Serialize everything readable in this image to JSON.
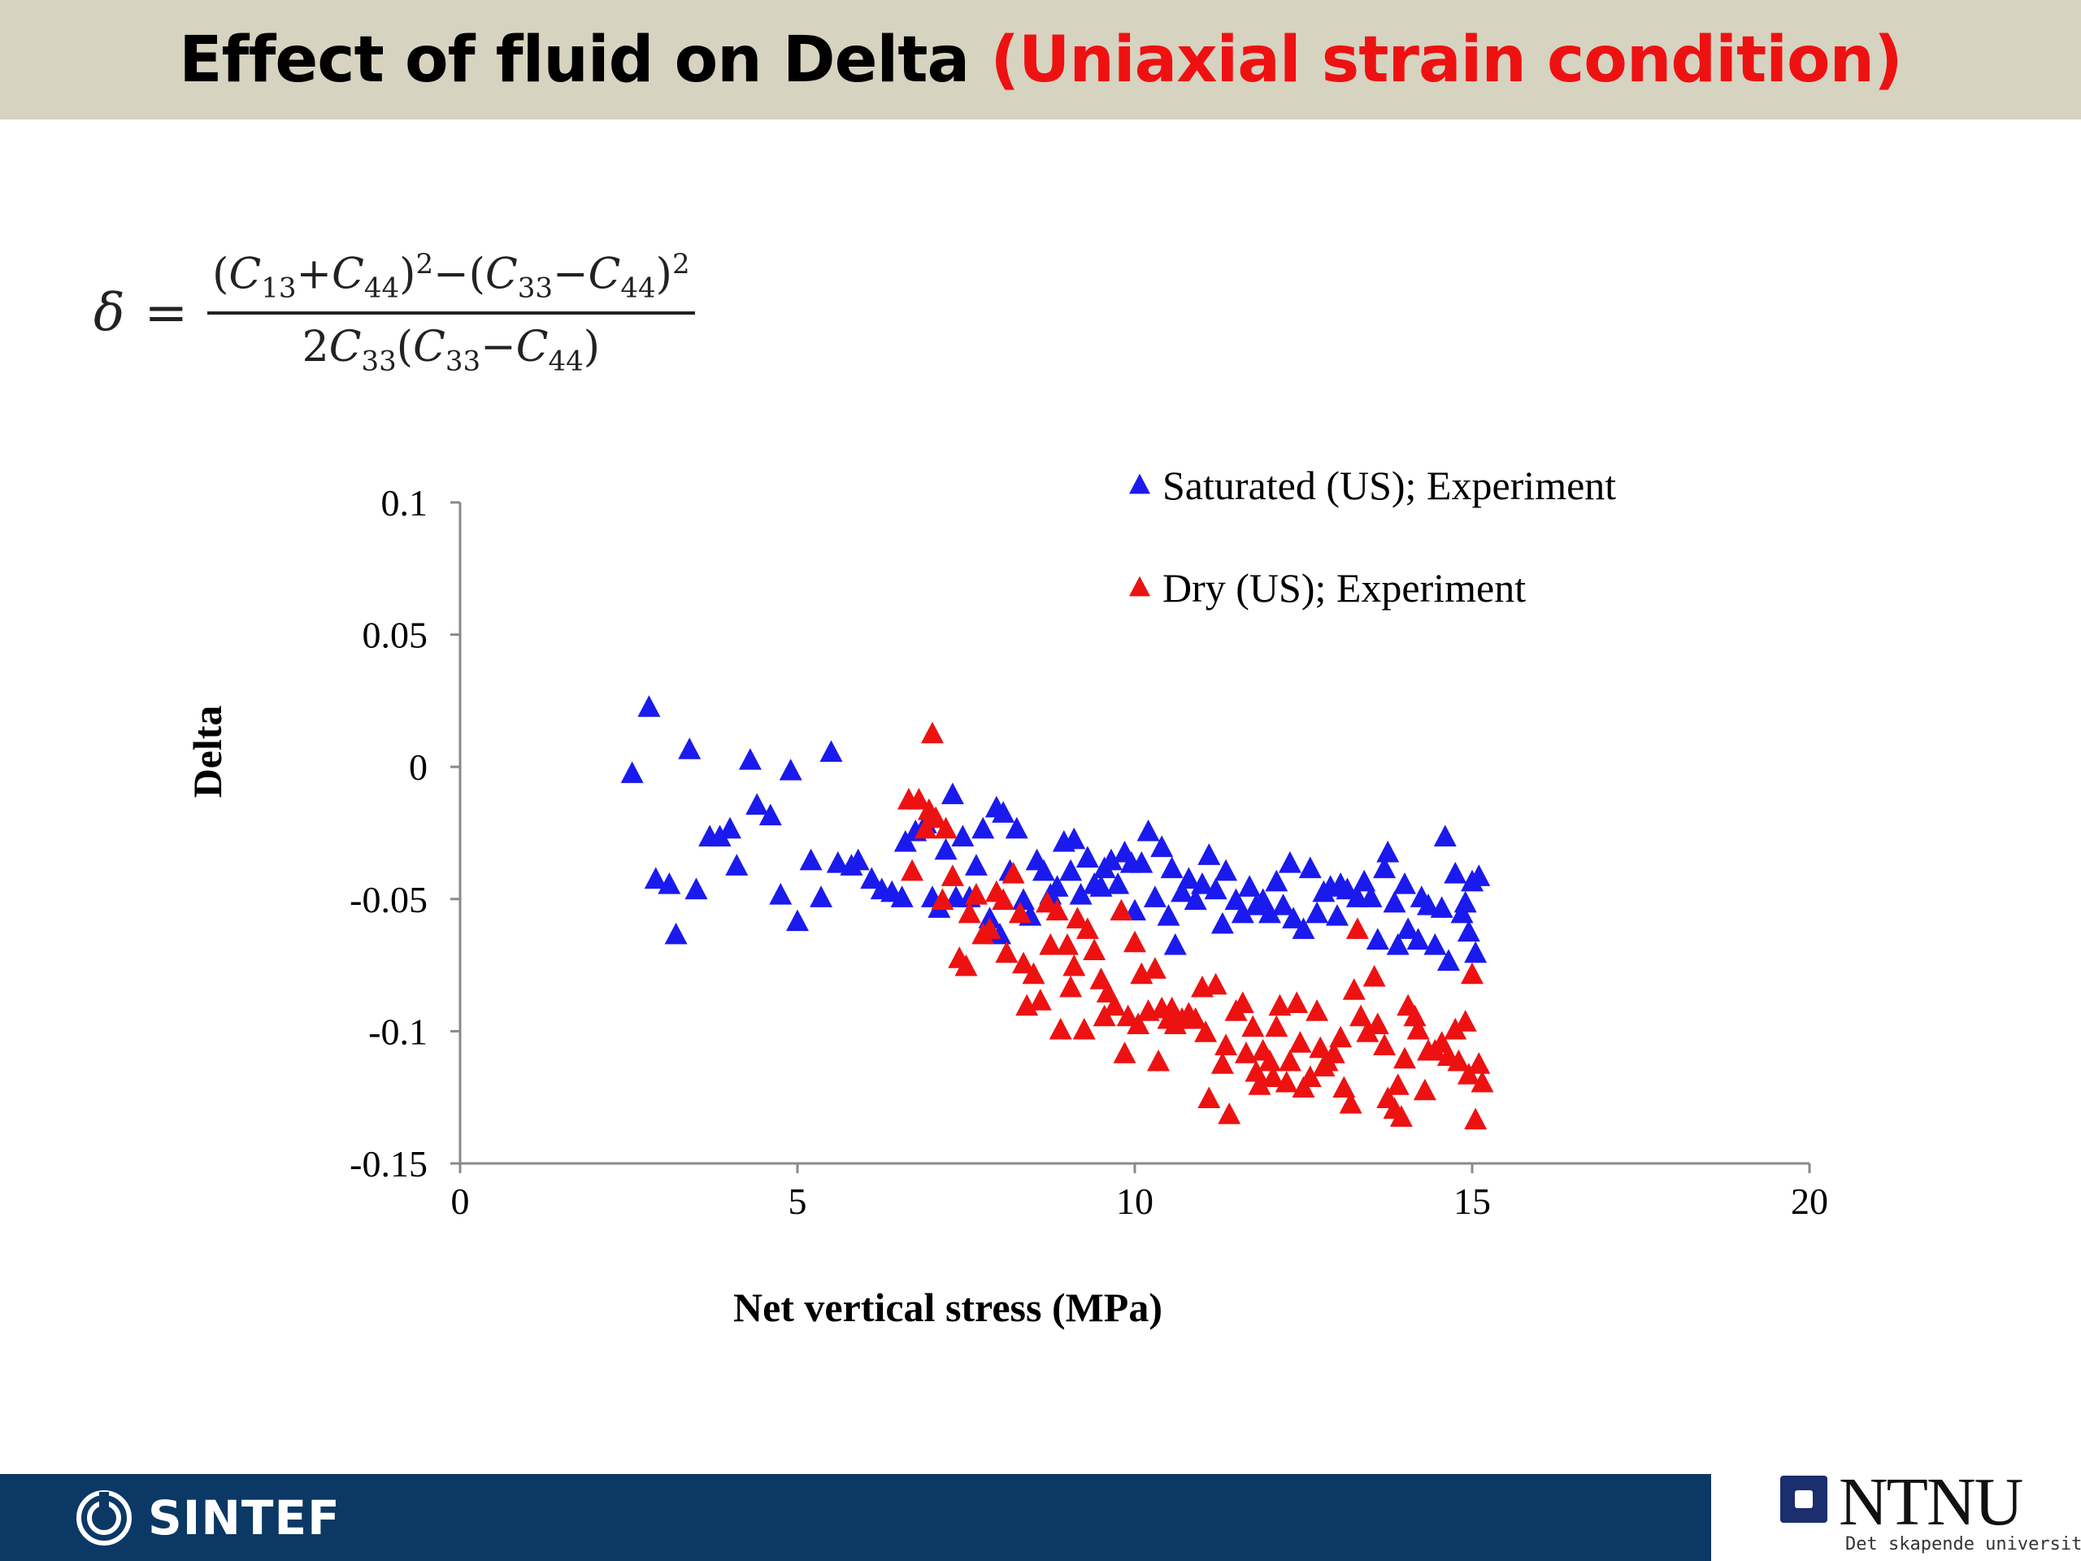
{
  "title": {
    "main": "Effect of fluid on Delta ",
    "accent": "(Uniaxial strain condition)"
  },
  "formula": {
    "lhs": "δ",
    "eq": "=",
    "numerator_html": "(<i>C</i><sub>13</sub>+<i>C</i><sub>44</sub>)<sup>2</sup>−(<i>C</i><sub>33</sub>−<i>C</i><sub>44</sub>)<sup>2</sup>",
    "denominator_html": "2<i>C</i><sub>33</sub>(<i>C</i><sub>33</sub>−<i>C</i><sub>44</sub>)"
  },
  "colors": {
    "title_bar": "#d6d3c0",
    "accent": "#ee1111",
    "saturated": "#1a1aee",
    "dry": "#ee1111",
    "footer": "#0b3865"
  },
  "chart_data": {
    "type": "scatter",
    "xlabel": "Net vertical stress (MPa)",
    "ylabel": "Delta",
    "xlim": [
      0,
      20
    ],
    "ylim": [
      -0.15,
      0.1
    ],
    "xticks": [
      "0",
      "5",
      "10",
      "15",
      "20"
    ],
    "yticks": [
      "0.1",
      "0.05",
      "0",
      "-0.05",
      "-0.1",
      "-0.15"
    ],
    "legend_position": "top-right",
    "marker": "triangle",
    "series": [
      {
        "name": "Saturated (US); Experiment",
        "color": "#1a1aee",
        "points": [
          [
            2.55,
            -0.003
          ],
          [
            2.8,
            0.022
          ],
          [
            2.9,
            -0.043
          ],
          [
            3.1,
            -0.045
          ],
          [
            3.2,
            -0.064
          ],
          [
            3.4,
            0.006
          ],
          [
            3.5,
            -0.047
          ],
          [
            3.7,
            -0.027
          ],
          [
            3.85,
            -0.027
          ],
          [
            4.0,
            -0.024
          ],
          [
            4.1,
            -0.038
          ],
          [
            4.3,
            0.002
          ],
          [
            4.4,
            -0.015
          ],
          [
            4.6,
            -0.019
          ],
          [
            4.75,
            -0.049
          ],
          [
            4.9,
            -0.002
          ],
          [
            5.0,
            -0.059
          ],
          [
            5.2,
            -0.036
          ],
          [
            5.35,
            -0.05
          ],
          [
            5.5,
            0.005
          ],
          [
            5.6,
            -0.037
          ],
          [
            5.8,
            -0.038
          ],
          [
            5.9,
            -0.036
          ],
          [
            6.1,
            -0.043
          ],
          [
            6.25,
            -0.047
          ],
          [
            6.4,
            -0.048
          ],
          [
            6.55,
            -0.05
          ],
          [
            6.6,
            -0.029
          ],
          [
            6.75,
            -0.025
          ],
          [
            6.9,
            -0.022
          ],
          [
            7.0,
            -0.05
          ],
          [
            7.1,
            -0.054
          ],
          [
            7.2,
            -0.032
          ],
          [
            7.3,
            -0.011
          ],
          [
            7.35,
            -0.05
          ],
          [
            7.45,
            -0.027
          ],
          [
            7.55,
            -0.05
          ],
          [
            7.65,
            -0.038
          ],
          [
            7.75,
            -0.024
          ],
          [
            7.85,
            -0.058
          ],
          [
            7.95,
            -0.016
          ],
          [
            8.0,
            -0.064
          ],
          [
            8.05,
            -0.018
          ],
          [
            8.15,
            -0.04
          ],
          [
            8.25,
            -0.024
          ],
          [
            8.35,
            -0.051
          ],
          [
            8.45,
            -0.057
          ],
          [
            8.55,
            -0.036
          ],
          [
            8.65,
            -0.04
          ],
          [
            8.75,
            -0.049
          ],
          [
            8.85,
            -0.046
          ],
          [
            8.95,
            -0.029
          ],
          [
            9.05,
            -0.04
          ],
          [
            9.1,
            -0.028
          ],
          [
            9.2,
            -0.049
          ],
          [
            9.3,
            -0.035
          ],
          [
            9.4,
            -0.045
          ],
          [
            9.5,
            -0.046
          ],
          [
            9.55,
            -0.039
          ],
          [
            9.65,
            -0.036
          ],
          [
            9.75,
            -0.045
          ],
          [
            9.85,
            -0.033
          ],
          [
            9.95,
            -0.037
          ],
          [
            10.0,
            -0.055
          ],
          [
            10.1,
            -0.037
          ],
          [
            10.2,
            -0.025
          ],
          [
            10.3,
            -0.05
          ],
          [
            10.4,
            -0.031
          ],
          [
            10.5,
            -0.057
          ],
          [
            10.55,
            -0.039
          ],
          [
            10.6,
            -0.068
          ],
          [
            10.7,
            -0.048
          ],
          [
            10.8,
            -0.043
          ],
          [
            10.9,
            -0.051
          ],
          [
            11.0,
            -0.045
          ],
          [
            11.1,
            -0.034
          ],
          [
            11.2,
            -0.047
          ],
          [
            11.3,
            -0.06
          ],
          [
            11.35,
            -0.04
          ],
          [
            11.5,
            -0.051
          ],
          [
            11.6,
            -0.056
          ],
          [
            11.7,
            -0.046
          ],
          [
            11.8,
            -0.053
          ],
          [
            11.9,
            -0.051
          ],
          [
            12.0,
            -0.056
          ],
          [
            12.1,
            -0.044
          ],
          [
            12.2,
            -0.053
          ],
          [
            12.3,
            -0.037
          ],
          [
            12.35,
            -0.058
          ],
          [
            12.5,
            -0.062
          ],
          [
            12.6,
            -0.039
          ],
          [
            12.7,
            -0.056
          ],
          [
            12.8,
            -0.048
          ],
          [
            12.9,
            -0.046
          ],
          [
            13.0,
            -0.057
          ],
          [
            13.05,
            -0.045
          ],
          [
            13.15,
            -0.047
          ],
          [
            13.3,
            -0.05
          ],
          [
            13.4,
            -0.044
          ],
          [
            13.5,
            -0.05
          ],
          [
            13.6,
            -0.066
          ],
          [
            13.7,
            -0.039
          ],
          [
            13.75,
            -0.033
          ],
          [
            13.85,
            -0.052
          ],
          [
            13.9,
            -0.068
          ],
          [
            14.0,
            -0.045
          ],
          [
            14.05,
            -0.062
          ],
          [
            14.2,
            -0.066
          ],
          [
            14.25,
            -0.05
          ],
          [
            14.35,
            -0.053
          ],
          [
            14.45,
            -0.068
          ],
          [
            14.55,
            -0.054
          ],
          [
            14.6,
            -0.027
          ],
          [
            14.65,
            -0.074
          ],
          [
            14.75,
            -0.041
          ],
          [
            14.85,
            -0.056
          ],
          [
            14.9,
            -0.052
          ],
          [
            14.95,
            -0.063
          ],
          [
            15.0,
            -0.044
          ],
          [
            15.05,
            -0.071
          ],
          [
            15.1,
            -0.042
          ]
        ]
      },
      {
        "name": "Dry (US); Experiment",
        "color": "#ee1111",
        "points": [
          [
            6.65,
            -0.013
          ],
          [
            6.7,
            -0.04
          ],
          [
            6.8,
            -0.013
          ],
          [
            6.9,
            -0.024
          ],
          [
            6.95,
            -0.017
          ],
          [
            7.0,
            0.012
          ],
          [
            7.05,
            -0.02
          ],
          [
            7.15,
            -0.051
          ],
          [
            7.2,
            -0.024
          ],
          [
            7.3,
            -0.042
          ],
          [
            7.4,
            -0.073
          ],
          [
            7.5,
            -0.076
          ],
          [
            7.55,
            -0.056
          ],
          [
            7.65,
            -0.049
          ],
          [
            7.75,
            -0.064
          ],
          [
            7.85,
            -0.062
          ],
          [
            7.95,
            -0.048
          ],
          [
            8.05,
            -0.051
          ],
          [
            8.1,
            -0.071
          ],
          [
            8.2,
            -0.041
          ],
          [
            8.3,
            -0.056
          ],
          [
            8.35,
            -0.075
          ],
          [
            8.4,
            -0.091
          ],
          [
            8.5,
            -0.079
          ],
          [
            8.6,
            -0.089
          ],
          [
            8.7,
            -0.052
          ],
          [
            8.75,
            -0.068
          ],
          [
            8.85,
            -0.055
          ],
          [
            8.9,
            -0.1
          ],
          [
            9.0,
            -0.068
          ],
          [
            9.05,
            -0.084
          ],
          [
            9.1,
            -0.076
          ],
          [
            9.15,
            -0.058
          ],
          [
            9.25,
            -0.1
          ],
          [
            9.3,
            -0.062
          ],
          [
            9.4,
            -0.07
          ],
          [
            9.5,
            -0.081
          ],
          [
            9.55,
            -0.095
          ],
          [
            9.6,
            -0.086
          ],
          [
            9.7,
            -0.091
          ],
          [
            9.8,
            -0.055
          ],
          [
            9.85,
            -0.109
          ],
          [
            9.9,
            -0.095
          ],
          [
            10.0,
            -0.067
          ],
          [
            10.05,
            -0.098
          ],
          [
            10.1,
            -0.079
          ],
          [
            10.2,
            -0.093
          ],
          [
            10.3,
            -0.077
          ],
          [
            10.35,
            -0.112
          ],
          [
            10.4,
            -0.092
          ],
          [
            10.5,
            -0.096
          ],
          [
            10.55,
            -0.092
          ],
          [
            10.6,
            -0.098
          ],
          [
            10.7,
            -0.096
          ],
          [
            10.8,
            -0.094
          ],
          [
            10.9,
            -0.096
          ],
          [
            11.0,
            -0.084
          ],
          [
            11.05,
            -0.101
          ],
          [
            11.1,
            -0.126
          ],
          [
            11.2,
            -0.083
          ],
          [
            11.3,
            -0.113
          ],
          [
            11.35,
            -0.106
          ],
          [
            11.4,
            -0.132
          ],
          [
            11.5,
            -0.093
          ],
          [
            11.6,
            -0.09
          ],
          [
            11.65,
            -0.109
          ],
          [
            11.75,
            -0.099
          ],
          [
            11.8,
            -0.116
          ],
          [
            11.85,
            -0.121
          ],
          [
            11.9,
            -0.108
          ],
          [
            12.0,
            -0.112
          ],
          [
            12.05,
            -0.118
          ],
          [
            12.1,
            -0.099
          ],
          [
            12.15,
            -0.091
          ],
          [
            12.25,
            -0.12
          ],
          [
            12.3,
            -0.112
          ],
          [
            12.4,
            -0.09
          ],
          [
            12.45,
            -0.105
          ],
          [
            12.5,
            -0.122
          ],
          [
            12.6,
            -0.118
          ],
          [
            12.7,
            -0.093
          ],
          [
            12.75,
            -0.107
          ],
          [
            12.8,
            -0.114
          ],
          [
            12.85,
            -0.112
          ],
          [
            12.95,
            -0.109
          ],
          [
            13.05,
            -0.103
          ],
          [
            13.1,
            -0.122
          ],
          [
            13.2,
            -0.128
          ],
          [
            13.25,
            -0.085
          ],
          [
            13.3,
            -0.062
          ],
          [
            13.35,
            -0.095
          ],
          [
            13.45,
            -0.101
          ],
          [
            13.55,
            -0.08
          ],
          [
            13.6,
            -0.098
          ],
          [
            13.7,
            -0.106
          ],
          [
            13.75,
            -0.126
          ],
          [
            13.85,
            -0.13
          ],
          [
            13.9,
            -0.121
          ],
          [
            13.95,
            -0.133
          ],
          [
            14.0,
            -0.111
          ],
          [
            14.05,
            -0.091
          ],
          [
            14.15,
            -0.095
          ],
          [
            14.2,
            -0.1
          ],
          [
            14.3,
            -0.123
          ],
          [
            14.35,
            -0.108
          ],
          [
            14.45,
            -0.108
          ],
          [
            14.55,
            -0.105
          ],
          [
            14.65,
            -0.11
          ],
          [
            14.75,
            -0.1
          ],
          [
            14.8,
            -0.112
          ],
          [
            14.9,
            -0.097
          ],
          [
            14.95,
            -0.117
          ],
          [
            15.0,
            -0.079
          ],
          [
            15.05,
            -0.134
          ],
          [
            15.1,
            -0.113
          ],
          [
            15.15,
            -0.12
          ]
        ]
      }
    ]
  },
  "footer": {
    "sintef": "SINTEF",
    "ntnu": "NTNU",
    "ntnu_tagline": "Det skapende universitet"
  }
}
